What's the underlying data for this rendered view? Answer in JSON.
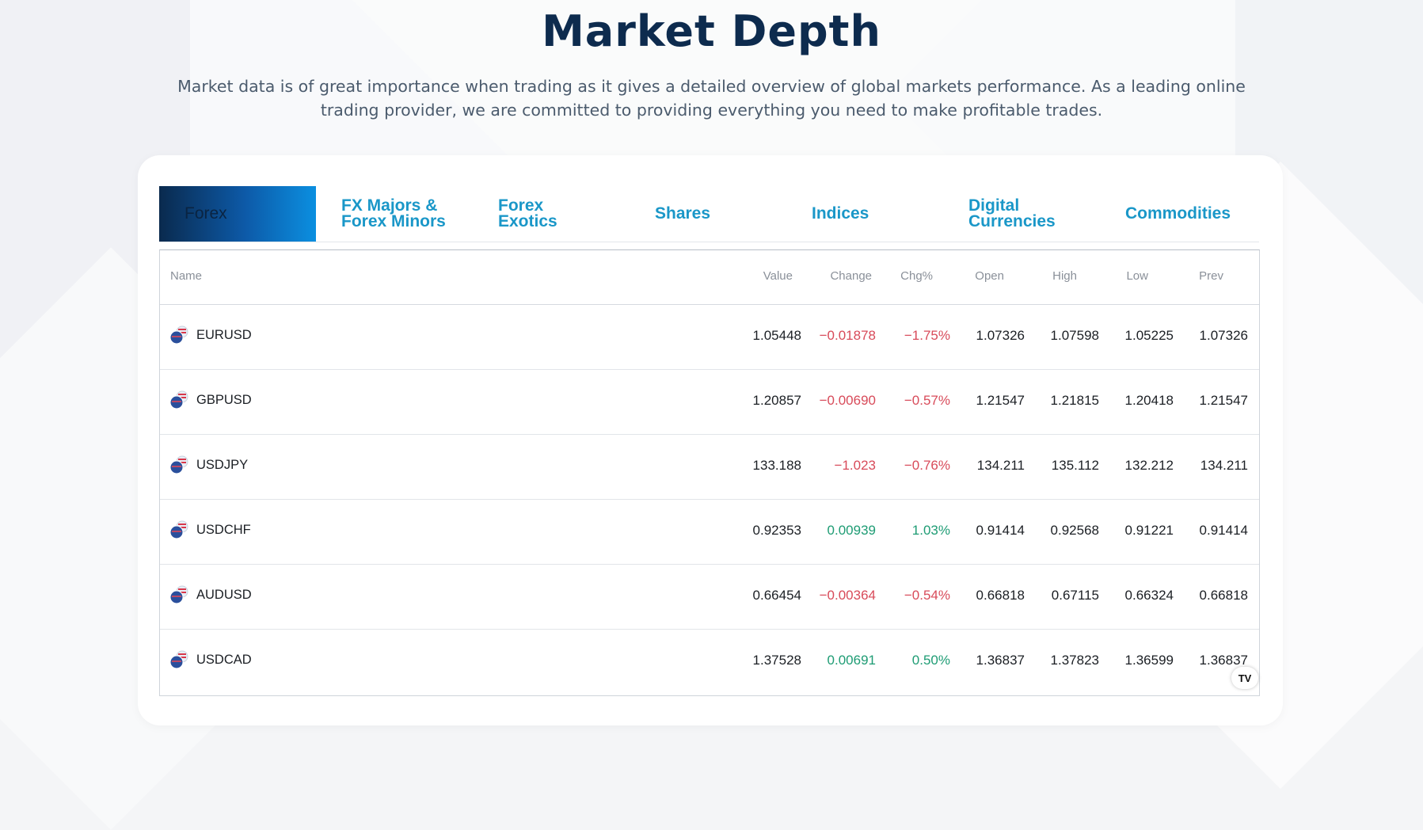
{
  "header": {
    "title": "Market Depth",
    "description": "Market data is of great importance when trading as it gives a detailed overview of global markets performance. As a leading online trading provider, we are committed to providing everything you need to make profitable trades."
  },
  "tabs": [
    {
      "label": "Forex",
      "active": true
    },
    {
      "label": "FX Majors &\nForex Minors",
      "active": false
    },
    {
      "label": "Forex\nExotics",
      "active": false
    },
    {
      "label": "Shares",
      "active": false
    },
    {
      "label": "Indices",
      "active": false
    },
    {
      "label": "Digital\nCurrencies",
      "active": false
    },
    {
      "label": "Commodities",
      "active": false
    }
  ],
  "table": {
    "columns": [
      "Name",
      "Value",
      "Change",
      "Chg%",
      "Open",
      "High",
      "Low",
      "Prev"
    ],
    "rows": [
      {
        "name": "EURUSD",
        "value": "1.05448",
        "change": "−0.01878",
        "chg_pct": "−1.75%",
        "open": "1.07326",
        "high": "1.07598",
        "low": "1.05225",
        "prev": "1.07326",
        "direction": "down",
        "flag": "eu-us-flag-icon"
      },
      {
        "name": "GBPUSD",
        "value": "1.20857",
        "change": "−0.00690",
        "chg_pct": "−0.57%",
        "open": "1.21547",
        "high": "1.21815",
        "low": "1.20418",
        "prev": "1.21547",
        "direction": "down",
        "flag": "gb-us-flag-icon"
      },
      {
        "name": "USDJPY",
        "value": "133.188",
        "change": "−1.023",
        "chg_pct": "−0.76%",
        "open": "134.211",
        "high": "135.112",
        "low": "132.212",
        "prev": "134.211",
        "direction": "down",
        "flag": "us-jp-flag-icon"
      },
      {
        "name": "USDCHF",
        "value": "0.92353",
        "change": "0.00939",
        "chg_pct": "1.03%",
        "open": "0.91414",
        "high": "0.92568",
        "low": "0.91221",
        "prev": "0.91414",
        "direction": "up",
        "flag": "us-ch-flag-icon"
      },
      {
        "name": "AUDUSD",
        "value": "0.66454",
        "change": "−0.00364",
        "chg_pct": "−0.54%",
        "open": "0.66818",
        "high": "0.67115",
        "low": "0.66324",
        "prev": "0.66818",
        "direction": "down",
        "flag": "au-us-flag-icon"
      },
      {
        "name": "USDCAD",
        "value": "1.37528",
        "change": "0.00691",
        "chg_pct": "0.50%",
        "open": "1.36837",
        "high": "1.37823",
        "low": "1.36599",
        "prev": "1.36837",
        "direction": "up",
        "flag": "us-ca-flag-icon"
      }
    ]
  },
  "widget_badge": "TV",
  "colors": {
    "title": "#0d2b4e",
    "tab_text": "#1a97c8",
    "negative": "#d84b5a",
    "positive": "#1e9c74"
  }
}
